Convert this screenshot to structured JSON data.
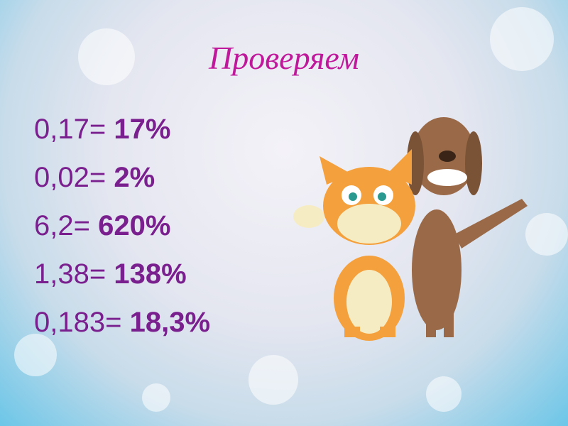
{
  "title": "Проверяем",
  "lines": [
    {
      "expr": "0,17=",
      "result": "17%"
    },
    {
      "expr": "0,02=",
      "result": "2%"
    },
    {
      "expr": "6,2=",
      "result": "620%"
    },
    {
      "expr": "1,38=",
      "result": "138%"
    },
    {
      "expr": "0,183=",
      "result": "18,3%"
    }
  ],
  "colors": {
    "title": "#c0189a",
    "text": "#7a1f8e"
  }
}
